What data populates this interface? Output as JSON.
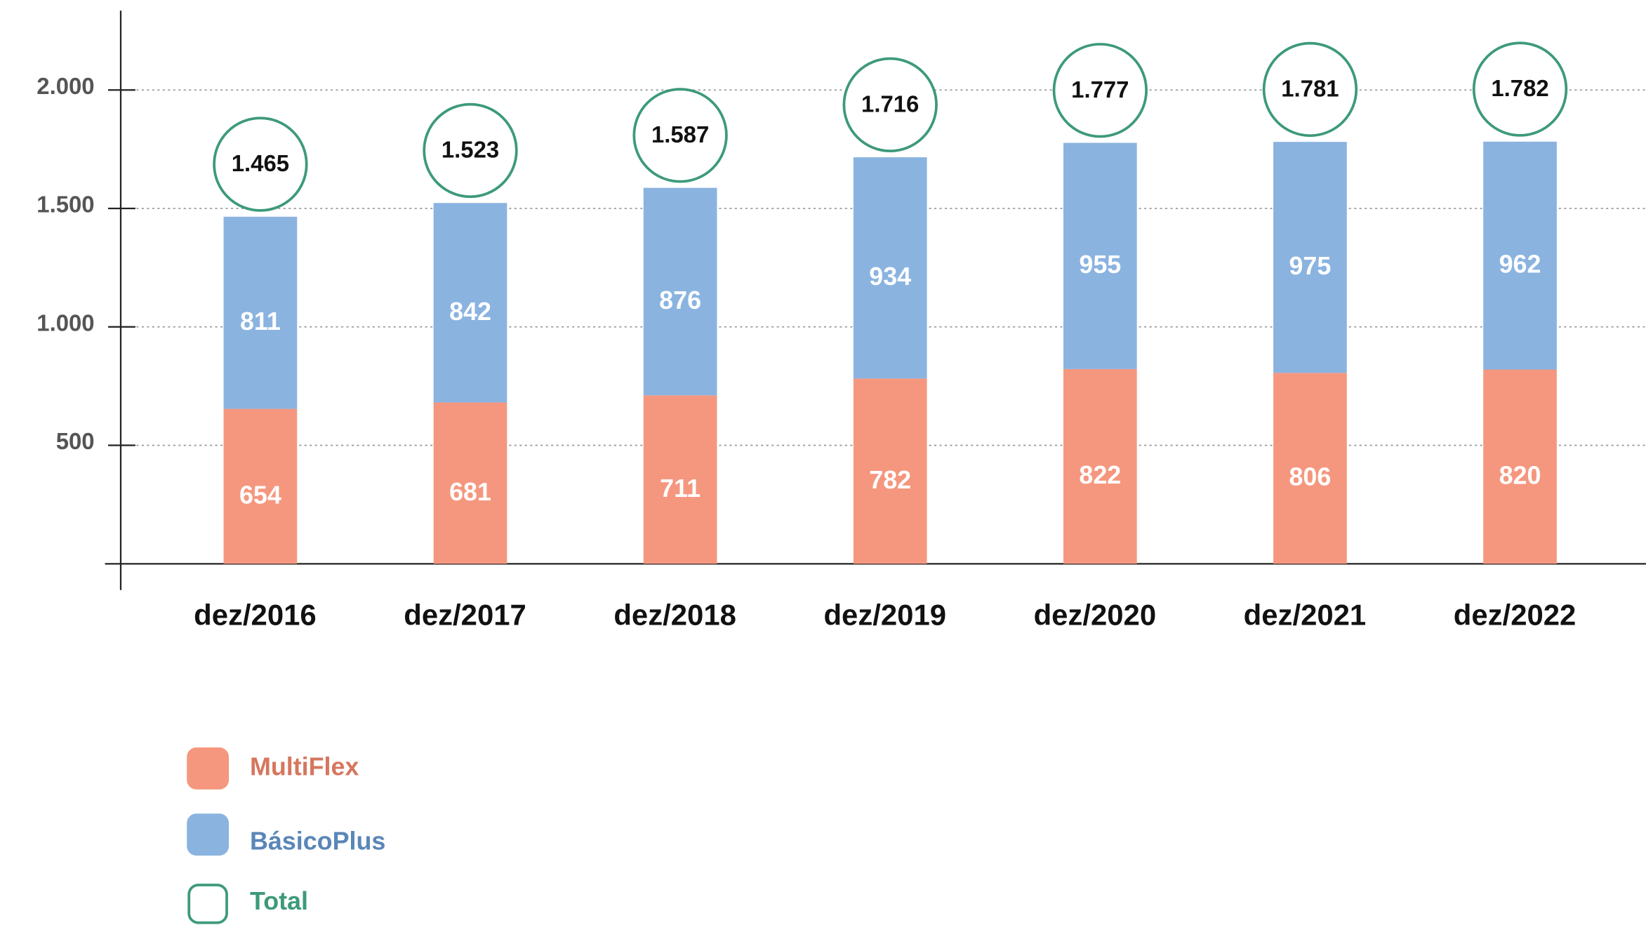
{
  "chart_data": {
    "type": "bar",
    "stacked": true,
    "categories": [
      "dez/2016",
      "dez/2017",
      "dez/2018",
      "dez/2019",
      "dez/2020",
      "dez/2021",
      "dez/2022"
    ],
    "series": [
      {
        "name": "MultiFlex",
        "color": "#f5977e",
        "label_color": "#d6765e",
        "values": [
          654,
          681,
          711,
          782,
          822,
          806,
          820
        ]
      },
      {
        "name": "BásicoPlus",
        "color": "#8ab3e0",
        "label_color": "#5a86b8",
        "values": [
          811,
          842,
          876,
          934,
          955,
          975,
          962
        ]
      },
      {
        "name": "Total",
        "color": "#3d9a78",
        "label_color": "#3d9a78",
        "style": "circle",
        "values": [
          1465,
          1523,
          1587,
          1716,
          1777,
          1781,
          1782
        ],
        "value_labels": [
          "1.465",
          "1.523",
          "1.587",
          "1.716",
          "1.777",
          "1.781",
          "1.782"
        ]
      }
    ],
    "ylim": [
      0,
      2335
    ],
    "yticks": [
      500,
      {
        "value": 1000,
        "label": "1.000"
      },
      {
        "value": 1500,
        "label": "1.500"
      },
      {
        "value": 2000,
        "label": "2.000"
      }
    ],
    "grid": true,
    "legend": "bottom-left"
  }
}
